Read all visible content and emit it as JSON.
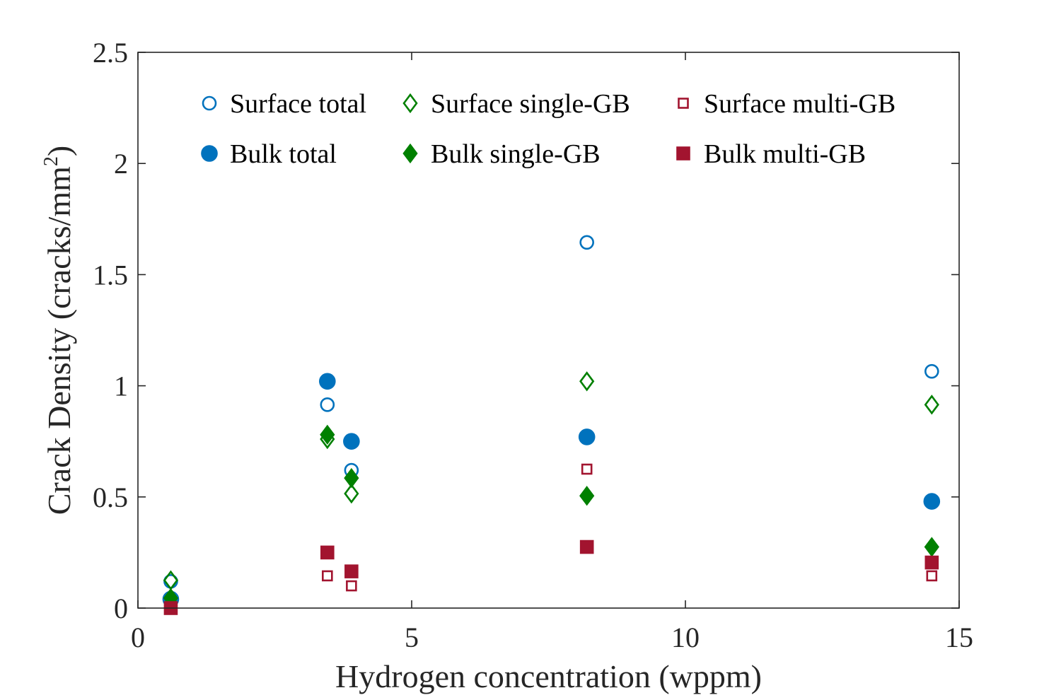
{
  "chart_data": {
    "type": "scatter",
    "title": "",
    "xlabel": "Hydrogen concentration (wppm)",
    "ylabel_main": "Crack Density (cracks/mm",
    "ylabel_sup": "2",
    "ylabel_close": ")",
    "xlim": [
      0,
      15
    ],
    "ylim": [
      0,
      2.5
    ],
    "xticks": [
      0,
      5,
      10,
      15
    ],
    "xtick_labels": [
      "0",
      "5",
      "10",
      "15"
    ],
    "yticks": [
      0,
      0.5,
      1,
      1.5,
      2,
      2.5
    ],
    "ytick_labels": [
      "0",
      "0.5",
      "1",
      "1.5",
      "2",
      "2.5"
    ],
    "grid": false,
    "legend_position": "top",
    "colors": {
      "blue": "#0072BD",
      "green": "#008000",
      "red": "#A2142F",
      "axis": "#262626"
    },
    "series": [
      {
        "name": "Surface total",
        "marker": "circle",
        "filled": false,
        "color": "#0072BD",
        "x": [
          0.6,
          3.46,
          3.9,
          8.2,
          14.5
        ],
        "y": [
          0.12,
          0.915,
          0.62,
          1.645,
          1.065
        ]
      },
      {
        "name": "Surface single-GB",
        "marker": "diamond",
        "filled": false,
        "color": "#008000",
        "x": [
          0.6,
          3.46,
          3.9,
          8.2,
          14.5
        ],
        "y": [
          0.125,
          0.76,
          0.515,
          1.02,
          0.915
        ]
      },
      {
        "name": "Surface multi-GB",
        "marker": "square",
        "filled": false,
        "color": "#A2142F",
        "x": [
          0.6,
          3.46,
          3.9,
          8.2,
          14.5
        ],
        "y": [
          0.0,
          0.145,
          0.1,
          0.625,
          0.145
        ]
      },
      {
        "name": "Bulk total",
        "marker": "circle",
        "filled": true,
        "color": "#0072BD",
        "x": [
          0.6,
          3.46,
          3.9,
          8.2,
          14.5
        ],
        "y": [
          0.04,
          1.02,
          0.75,
          0.77,
          0.48
        ]
      },
      {
        "name": "Bulk single-GB",
        "marker": "diamond",
        "filled": true,
        "color": "#008000",
        "x": [
          0.6,
          3.46,
          3.9,
          8.2,
          14.5
        ],
        "y": [
          0.045,
          0.78,
          0.585,
          0.505,
          0.275
        ]
      },
      {
        "name": "Bulk multi-GB",
        "marker": "square",
        "filled": true,
        "color": "#A2142F",
        "x": [
          0.6,
          3.46,
          3.9,
          8.2,
          14.5
        ],
        "y": [
          0.0,
          0.25,
          0.165,
          0.275,
          0.205
        ]
      }
    ]
  }
}
